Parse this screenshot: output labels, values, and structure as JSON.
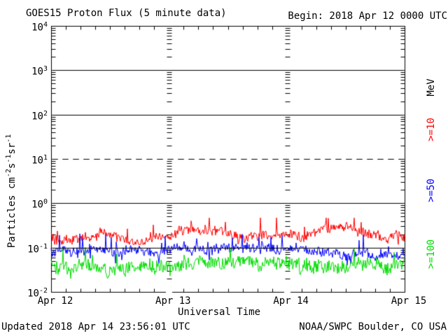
{
  "header": {
    "title": "GOES15 Proton Flux (5 minute data)",
    "begin_label": "Begin: 2018 Apr 12 0000 UTC"
  },
  "footer": {
    "updated": "Updated 2018 Apr 14 23:56:01 UTC",
    "source": "NOAA/SWPC Boulder, CO USA"
  },
  "chart_data": {
    "type": "line",
    "title": "GOES15 Proton Flux (5 minute data)",
    "xlabel": "Universal Time",
    "ylabel_parts": [
      {
        "t": "Particles cm"
      },
      {
        "sup": "-2"
      },
      {
        "t": "s"
      },
      {
        "sup": "-1"
      },
      {
        "t": "sr"
      },
      {
        "sup": "-1"
      }
    ],
    "log_base": "10",
    "y_exponents": [
      4,
      3,
      2,
      1,
      0,
      -1,
      -2
    ],
    "ylim_log10": [
      -2,
      4
    ],
    "x_ticks": [
      "Apr 12",
      "Apr 13",
      "Apr 14",
      "Apr 15"
    ],
    "x_minor_tick_hours": 3,
    "cadence": "5 minute",
    "grid_lines": [
      {
        "log10": 3,
        "style": "solid"
      },
      {
        "log10": 2,
        "style": "solid"
      },
      {
        "log10": 1,
        "style": "dashed"
      },
      {
        "log10": 0,
        "style": "solid"
      },
      {
        "log10": -1,
        "style": "solid"
      }
    ],
    "legend": {
      "unit": {
        "label": "MeV",
        "color": "#000000",
        "y_center": 125
      },
      "entries": [
        {
          "label": ">=10",
          "color": "#ff0000",
          "y_center": 185
        },
        {
          "label": ">=50",
          "color": "#0000ff",
          "y_center": 272
        },
        {
          "label": ">=100",
          "color": "#00dd00",
          "y_center": 363
        }
      ]
    },
    "series": [
      {
        "name": ">=10 MeV",
        "color": "#ff0000",
        "approx_mean_flux": 0.19,
        "approx_flux_range": [
          0.12,
          0.47
        ],
        "mean_log10": -0.72,
        "sigma_log10": 0.1,
        "spike_log10": 0.3,
        "range_log10": [
          -0.93,
          -0.33
        ],
        "seed": 101
      },
      {
        "name": ">=50 MeV",
        "color": "#0000ff",
        "approx_mean_flux": 0.083,
        "approx_flux_range": [
          0.04,
          0.22
        ],
        "mean_log10": -1.08,
        "sigma_log10": 0.1,
        "spike_log10": 0.34,
        "range_log10": [
          -1.4,
          -0.66
        ],
        "seed": 202
      },
      {
        "name": ">=100 MeV",
        "color": "#00dd00",
        "approx_mean_flux": 0.04,
        "approx_flux_range": [
          0.02,
          0.1
        ],
        "mean_log10": -1.4,
        "sigma_log10": 0.14,
        "spike_log10": 0.3,
        "range_log10": [
          -1.7,
          -1.0
        ],
        "seed": 303
      }
    ]
  }
}
